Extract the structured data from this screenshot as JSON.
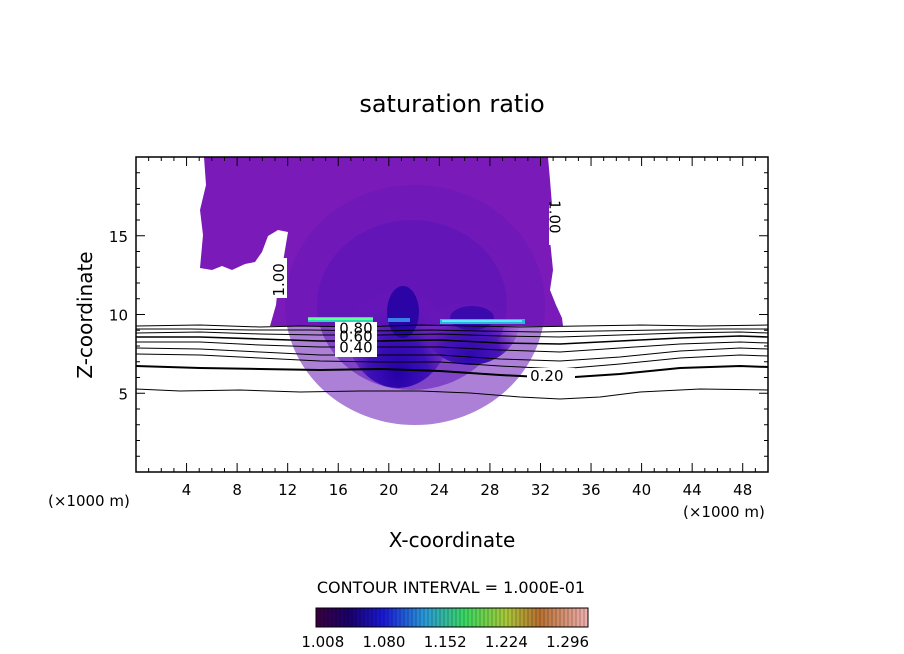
{
  "chart_data": {
    "type": "contour",
    "title": "saturation ratio",
    "xlabel": "X-coordinate",
    "ylabel": "Z-coordinate",
    "x_unit_left": "(×1000 m)",
    "x_unit_right": "(×1000 m)",
    "xlim": [
      0,
      50
    ],
    "ylim": [
      0,
      20
    ],
    "x_ticks": [
      4,
      8,
      12,
      16,
      20,
      24,
      28,
      32,
      36,
      40,
      44,
      48
    ],
    "y_ticks": [
      5,
      10,
      15
    ],
    "contour_interval_text": "CONTOUR INTERVAL = 1.000E-01",
    "contour_labels": [
      {
        "text": "1.00",
        "x": 11.3,
        "z": 12.2
      },
      {
        "text": "1.00",
        "x": 33.1,
        "z": 16.2
      },
      {
        "text": "0.80",
        "x": 17.4,
        "z": 9.1
      },
      {
        "text": "0.60",
        "x": 17.4,
        "z": 8.6
      },
      {
        "text": "0.40",
        "x": 17.4,
        "z": 7.9
      },
      {
        "text": "0.20",
        "x": 32.5,
        "z": 6.1
      }
    ],
    "colorbar": {
      "labels": [
        "1.008",
        "1.080",
        "1.152",
        "1.224",
        "1.296"
      ],
      "range": [
        1.0,
        1.32
      ]
    }
  }
}
